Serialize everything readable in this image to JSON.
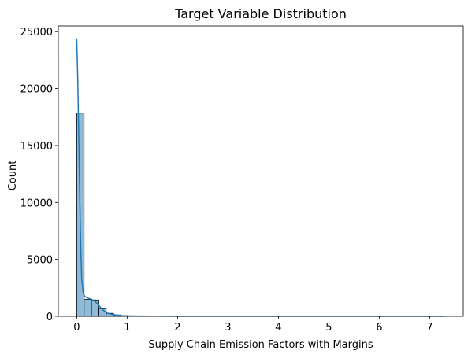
{
  "chart_data": {
    "type": "bar",
    "title": "Target Variable Distribution",
    "xlabel": "Supply Chain Emission Factors with Margins",
    "ylabel": "Count",
    "xlim": [
      -0.365,
      7.665
    ],
    "ylim": [
      0,
      25500
    ],
    "xticks": [
      0,
      1,
      2,
      3,
      4,
      5,
      6,
      7
    ],
    "yticks": [
      0,
      5000,
      10000,
      15000,
      20000,
      25000
    ],
    "grid": false,
    "bin_width": 0.146,
    "bins": [
      {
        "x0": 0.0,
        "count": 17850
      },
      {
        "x0": 0.146,
        "count": 1480
      },
      {
        "x0": 0.292,
        "count": 1430
      },
      {
        "x0": 0.438,
        "count": 680
      },
      {
        "x0": 0.584,
        "count": 260
      },
      {
        "x0": 0.73,
        "count": 120
      },
      {
        "x0": 0.876,
        "count": 60
      },
      {
        "x0": 1.022,
        "count": 30
      },
      {
        "x0": 1.168,
        "count": 15
      },
      {
        "x0": 1.314,
        "count": 8
      },
      {
        "x0": 1.46,
        "count": 4
      }
    ],
    "kde": {
      "name": "",
      "x": [
        0.0,
        0.02,
        0.04,
        0.06,
        0.08,
        0.1,
        0.13,
        0.16,
        0.2,
        0.25,
        0.3,
        0.35,
        0.4,
        0.45,
        0.5,
        0.55,
        0.6,
        0.7,
        0.8,
        0.9,
        1.0,
        1.2,
        1.5,
        2.0,
        3.0,
        4.0,
        5.0,
        6.0,
        7.0,
        7.3
      ],
      "y": [
        24400,
        21000,
        16000,
        10500,
        6000,
        3200,
        2000,
        1750,
        1650,
        1550,
        1480,
        1350,
        1150,
        900,
        650,
        450,
        300,
        170,
        100,
        60,
        40,
        25,
        15,
        10,
        8,
        6,
        5,
        5,
        5,
        5
      ]
    },
    "colors": {
      "bar_fill": "#1f77b4",
      "bar_fill_opacity": 0.5,
      "bar_edge": "#000000",
      "line": "#1f77b4"
    }
  }
}
